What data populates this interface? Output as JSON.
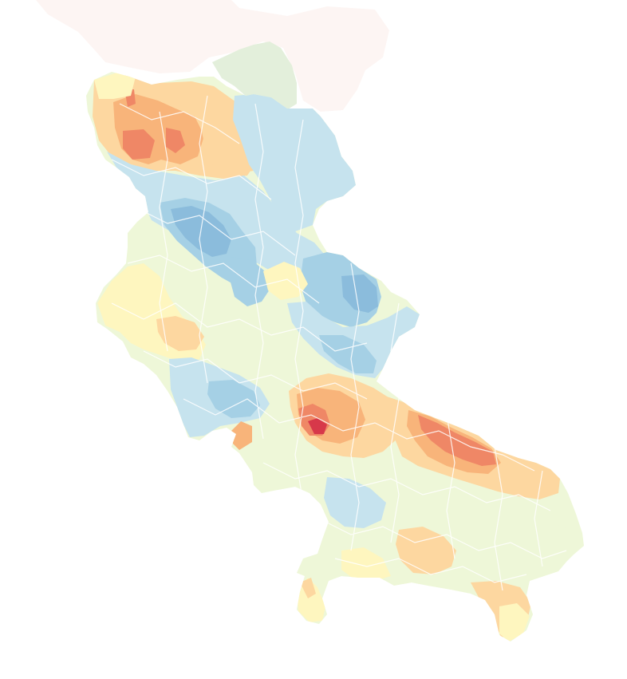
{
  "map": {
    "type": "choropleth",
    "background": "#ffffff",
    "palette": "RdYlBu",
    "colors": {
      "context_region": "#fdf5f3",
      "neighbor_region": "#e3efdb",
      "stroke": "#ffffff",
      "class_1": "#d7384a",
      "class_2": "#ef8766",
      "class_3": "#f8b47a",
      "class_4": "#fdd7a0",
      "class_5": "#fef6bf",
      "class_6": "#eef7d8",
      "class_7": "#c6e3ee",
      "class_8": "#a5d0e5",
      "class_9": "#8bbcdc"
    },
    "legend": null,
    "title": ""
  }
}
